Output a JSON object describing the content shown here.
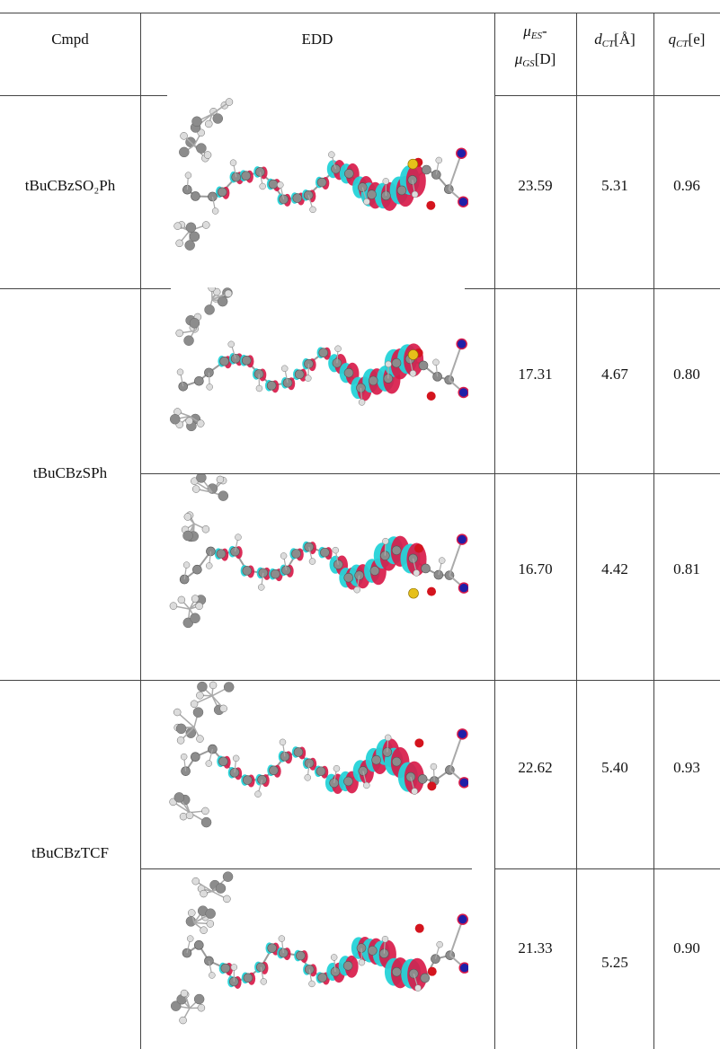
{
  "headers": {
    "cmpd": "Cmpd",
    "edd": "EDD",
    "mu_sym1": "μ",
    "mu_sub1": "ES",
    "mu_dash": "-",
    "mu_sym2": "μ",
    "mu_sub2": "GS",
    "mu_unit": "[D]",
    "dct_sym": "d",
    "dct_sub": "CT",
    "dct_unit": "[Å]",
    "qct_sym": "q",
    "qct_sub": "CT",
    "qct_unit": "[e]"
  },
  "rows": [
    {
      "compound": "tBuCBzSO₂Ph",
      "mu": "23.59",
      "dct": "5.31",
      "qct": "0.96",
      "edd_icon": "edd-isosurface-image"
    },
    {
      "compound": "tBuCBzSPh",
      "mu": "17.31",
      "dct": "4.67",
      "qct": "0.80",
      "edd_icon": "edd-isosurface-image"
    },
    {
      "compound": "",
      "mu": "16.70",
      "dct": "4.42",
      "qct": "0.81",
      "edd_icon": "edd-isosurface-image"
    },
    {
      "compound": "tBuCBzTCF",
      "mu": "22.62",
      "dct": "5.40",
      "qct": "0.93",
      "edd_icon": "edd-isosurface-image"
    },
    {
      "compound": "",
      "mu": "21.33",
      "dct": "5.25",
      "qct": "0.90",
      "edd_icon": "edd-isosurface-image"
    }
  ],
  "colors": {
    "positive_lobe": "#d81b4a",
    "negative_lobe": "#25d3d8",
    "carbon": "#8c8c8c",
    "hydrogen": "#dcdcdc",
    "oxygen": "#d4141e",
    "nitrogen": "#1f1fa8",
    "sulfur": "#e6c01a",
    "line": "#444444"
  }
}
